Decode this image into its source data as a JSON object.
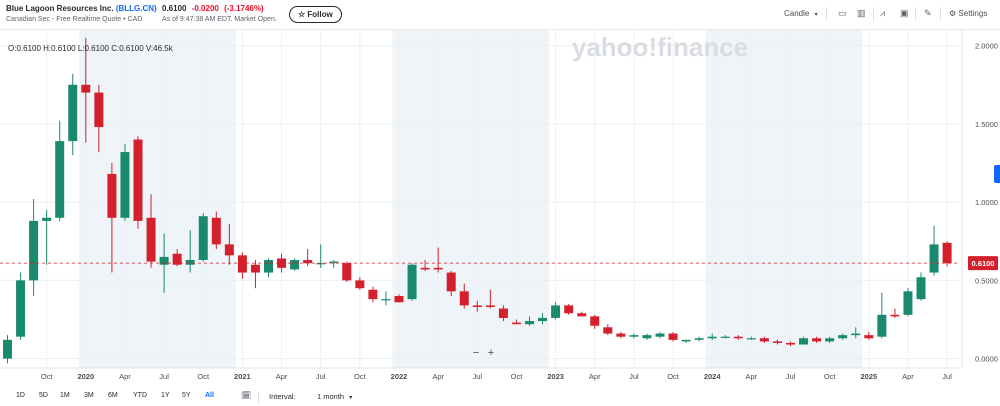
{
  "header": {
    "company": "Blue Lagoon Resources Inc.",
    "ticker": "(BLLG.CN)",
    "market_info": "Canadian Sec - Free Realtime Quote • CAD",
    "price": "0.6100",
    "change": "-0.0200",
    "change_pct": "(-3.1746%)",
    "as_of": "As of 9:47:38 AM EDT. Market Open.",
    "follow_label": "☆ Follow"
  },
  "toolbar": {
    "chart_type_label": "Candle",
    "settings_label": "Settings",
    "icons": [
      "chevron-down-icon",
      "date-range-icon",
      "compare-icon",
      "indicators-icon",
      "events-icon",
      "draw-icon",
      "gear-icon"
    ]
  },
  "ohlc": "O:0.6100  H:0.6100  L:0.6100  C:0.6100  V:46.5k",
  "watermark": "yahoo!finance",
  "last_price_label": "0.6100",
  "colors": {
    "up": "#1a8a6e",
    "down": "#d4202c",
    "last_price": "#d4202c",
    "shade": "#eef4f8"
  },
  "chart_data": {
    "type": "candlestick",
    "interval": "1 month",
    "ylim": [
      -0.06,
      2.1
    ],
    "y_ticks": [
      0.0,
      0.5,
      1.0,
      1.5,
      2.0
    ],
    "y_tick_labels": [
      "0.0000",
      "0.5000",
      "1.0000",
      "1.5000",
      "2.0000"
    ],
    "x_tick_labels": [
      {
        "label": "Oct",
        "index": 3,
        "bold": false
      },
      {
        "label": "2020",
        "index": 6,
        "bold": true
      },
      {
        "label": "Apr",
        "index": 9,
        "bold": false
      },
      {
        "label": "Jul",
        "index": 12,
        "bold": false
      },
      {
        "label": "Oct",
        "index": 15,
        "bold": false
      },
      {
        "label": "2021",
        "index": 18,
        "bold": true
      },
      {
        "label": "Apr",
        "index": 21,
        "bold": false
      },
      {
        "label": "Jul",
        "index": 24,
        "bold": false
      },
      {
        "label": "Oct",
        "index": 27,
        "bold": false
      },
      {
        "label": "2022",
        "index": 30,
        "bold": true
      },
      {
        "label": "Apr",
        "index": 33,
        "bold": false
      },
      {
        "label": "Jul",
        "index": 36,
        "bold": false
      },
      {
        "label": "Oct",
        "index": 39,
        "bold": false
      },
      {
        "label": "2023",
        "index": 42,
        "bold": true
      },
      {
        "label": "Apr",
        "index": 45,
        "bold": false
      },
      {
        "label": "Jul",
        "index": 48,
        "bold": false
      },
      {
        "label": "Oct",
        "index": 51,
        "bold": false
      },
      {
        "label": "2024",
        "index": 54,
        "bold": true
      },
      {
        "label": "Apr",
        "index": 57,
        "bold": false
      },
      {
        "label": "Jul",
        "index": 60,
        "bold": false
      },
      {
        "label": "Oct",
        "index": 63,
        "bold": false
      },
      {
        "label": "2025",
        "index": 66,
        "bold": true
      },
      {
        "label": "Apr",
        "index": 69,
        "bold": false
      },
      {
        "label": "Jul",
        "index": 72,
        "bold": false
      }
    ],
    "last_price": 0.61,
    "grid": true,
    "candles": [
      {
        "o": 0.0,
        "h": 0.15,
        "l": -0.03,
        "c": 0.12
      },
      {
        "o": 0.14,
        "h": 0.55,
        "l": 0.12,
        "c": 0.5
      },
      {
        "o": 0.5,
        "h": 1.02,
        "l": 0.4,
        "c": 0.88
      },
      {
        "o": 0.88,
        "h": 0.95,
        "l": 0.6,
        "c": 0.9
      },
      {
        "o": 0.9,
        "h": 1.52,
        "l": 0.88,
        "c": 1.39
      },
      {
        "o": 1.39,
        "h": 1.82,
        "l": 1.3,
        "c": 1.75
      },
      {
        "o": 1.75,
        "h": 2.05,
        "l": 1.38,
        "c": 1.7
      },
      {
        "o": 1.7,
        "h": 1.75,
        "l": 1.32,
        "c": 1.48
      },
      {
        "o": 1.18,
        "h": 1.25,
        "l": 0.55,
        "c": 0.9
      },
      {
        "o": 0.9,
        "h": 1.37,
        "l": 0.88,
        "c": 1.32
      },
      {
        "o": 1.4,
        "h": 1.42,
        "l": 0.83,
        "c": 0.88
      },
      {
        "o": 0.9,
        "h": 1.05,
        "l": 0.58,
        "c": 0.62
      },
      {
        "o": 0.6,
        "h": 0.8,
        "l": 0.42,
        "c": 0.65
      },
      {
        "o": 0.67,
        "h": 0.7,
        "l": 0.59,
        "c": 0.6
      },
      {
        "o": 0.6,
        "h": 0.82,
        "l": 0.55,
        "c": 0.63
      },
      {
        "o": 0.63,
        "h": 0.93,
        "l": 0.62,
        "c": 0.91
      },
      {
        "o": 0.9,
        "h": 0.94,
        "l": 0.7,
        "c": 0.73
      },
      {
        "o": 0.73,
        "h": 0.86,
        "l": 0.6,
        "c": 0.66
      },
      {
        "o": 0.66,
        "h": 0.68,
        "l": 0.51,
        "c": 0.55
      },
      {
        "o": 0.6,
        "h": 0.63,
        "l": 0.45,
        "c": 0.55
      },
      {
        "o": 0.55,
        "h": 0.64,
        "l": 0.52,
        "c": 0.63
      },
      {
        "o": 0.64,
        "h": 0.67,
        "l": 0.55,
        "c": 0.58
      },
      {
        "o": 0.57,
        "h": 0.64,
        "l": 0.56,
        "c": 0.63
      },
      {
        "o": 0.63,
        "h": 0.7,
        "l": 0.59,
        "c": 0.61
      },
      {
        "o": 0.61,
        "h": 0.73,
        "l": 0.58,
        "c": 0.61
      },
      {
        "o": 0.61,
        "h": 0.63,
        "l": 0.58,
        "c": 0.62
      },
      {
        "o": 0.61,
        "h": 0.62,
        "l": 0.49,
        "c": 0.5
      },
      {
        "o": 0.5,
        "h": 0.52,
        "l": 0.44,
        "c": 0.45
      },
      {
        "o": 0.44,
        "h": 0.46,
        "l": 0.36,
        "c": 0.38
      },
      {
        "o": 0.38,
        "h": 0.43,
        "l": 0.34,
        "c": 0.38
      },
      {
        "o": 0.4,
        "h": 0.41,
        "l": 0.36,
        "c": 0.36
      },
      {
        "o": 0.38,
        "h": 0.61,
        "l": 0.37,
        "c": 0.6
      },
      {
        "o": 0.58,
        "h": 0.63,
        "l": 0.56,
        "c": 0.57
      },
      {
        "o": 0.58,
        "h": 0.71,
        "l": 0.55,
        "c": 0.57
      },
      {
        "o": 0.55,
        "h": 0.56,
        "l": 0.4,
        "c": 0.43
      },
      {
        "o": 0.43,
        "h": 0.48,
        "l": 0.32,
        "c": 0.34
      },
      {
        "o": 0.34,
        "h": 0.37,
        "l": 0.3,
        "c": 0.33
      },
      {
        "o": 0.34,
        "h": 0.44,
        "l": 0.32,
        "c": 0.33
      },
      {
        "o": 0.32,
        "h": 0.34,
        "l": 0.24,
        "c": 0.26
      },
      {
        "o": 0.23,
        "h": 0.25,
        "l": 0.22,
        "c": 0.22
      },
      {
        "o": 0.22,
        "h": 0.27,
        "l": 0.21,
        "c": 0.24
      },
      {
        "o": 0.24,
        "h": 0.29,
        "l": 0.22,
        "c": 0.26
      },
      {
        "o": 0.26,
        "h": 0.36,
        "l": 0.25,
        "c": 0.34
      },
      {
        "o": 0.34,
        "h": 0.35,
        "l": 0.28,
        "c": 0.29
      },
      {
        "o": 0.29,
        "h": 0.3,
        "l": 0.27,
        "c": 0.27
      },
      {
        "o": 0.27,
        "h": 0.28,
        "l": 0.19,
        "c": 0.21
      },
      {
        "o": 0.2,
        "h": 0.22,
        "l": 0.15,
        "c": 0.16
      },
      {
        "o": 0.16,
        "h": 0.17,
        "l": 0.13,
        "c": 0.14
      },
      {
        "o": 0.14,
        "h": 0.16,
        "l": 0.13,
        "c": 0.15
      },
      {
        "o": 0.13,
        "h": 0.16,
        "l": 0.12,
        "c": 0.15
      },
      {
        "o": 0.14,
        "h": 0.17,
        "l": 0.13,
        "c": 0.16
      },
      {
        "o": 0.16,
        "h": 0.17,
        "l": 0.11,
        "c": 0.12
      },
      {
        "o": 0.11,
        "h": 0.12,
        "l": 0.1,
        "c": 0.12
      },
      {
        "o": 0.12,
        "h": 0.14,
        "l": 0.11,
        "c": 0.13
      },
      {
        "o": 0.13,
        "h": 0.16,
        "l": 0.12,
        "c": 0.14
      },
      {
        "o": 0.14,
        "h": 0.15,
        "l": 0.13,
        "c": 0.14
      },
      {
        "o": 0.14,
        "h": 0.15,
        "l": 0.12,
        "c": 0.13
      },
      {
        "o": 0.13,
        "h": 0.14,
        "l": 0.12,
        "c": 0.13
      },
      {
        "o": 0.13,
        "h": 0.14,
        "l": 0.1,
        "c": 0.11
      },
      {
        "o": 0.11,
        "h": 0.12,
        "l": 0.09,
        "c": 0.1
      },
      {
        "o": 0.1,
        "h": 0.11,
        "l": 0.08,
        "c": 0.09
      },
      {
        "o": 0.09,
        "h": 0.14,
        "l": 0.09,
        "c": 0.13
      },
      {
        "o": 0.13,
        "h": 0.14,
        "l": 0.1,
        "c": 0.11
      },
      {
        "o": 0.11,
        "h": 0.14,
        "l": 0.1,
        "c": 0.13
      },
      {
        "o": 0.13,
        "h": 0.16,
        "l": 0.12,
        "c": 0.15
      },
      {
        "o": 0.15,
        "h": 0.2,
        "l": 0.13,
        "c": 0.16
      },
      {
        "o": 0.15,
        "h": 0.17,
        "l": 0.12,
        "c": 0.13
      },
      {
        "o": 0.14,
        "h": 0.42,
        "l": 0.13,
        "c": 0.28
      },
      {
        "o": 0.28,
        "h": 0.32,
        "l": 0.26,
        "c": 0.27
      },
      {
        "o": 0.28,
        "h": 0.45,
        "l": 0.27,
        "c": 0.43
      },
      {
        "o": 0.38,
        "h": 0.55,
        "l": 0.37,
        "c": 0.52
      },
      {
        "o": 0.55,
        "h": 0.85,
        "l": 0.53,
        "c": 0.73
      },
      {
        "o": 0.74,
        "h": 0.75,
        "l": 0.59,
        "c": 0.61
      }
    ]
  },
  "bottom": {
    "ranges": [
      {
        "label": "1D",
        "active": false
      },
      {
        "label": "5D",
        "active": false
      },
      {
        "label": "1M",
        "active": false
      },
      {
        "label": "3M",
        "active": false
      },
      {
        "label": "6M",
        "active": false
      },
      {
        "label": "YTD",
        "active": false
      },
      {
        "label": "1Y",
        "active": false
      },
      {
        "label": "5Y",
        "active": false
      },
      {
        "label": "All",
        "active": true
      }
    ],
    "interval_label": "Interval:",
    "interval_value": "1 month"
  }
}
